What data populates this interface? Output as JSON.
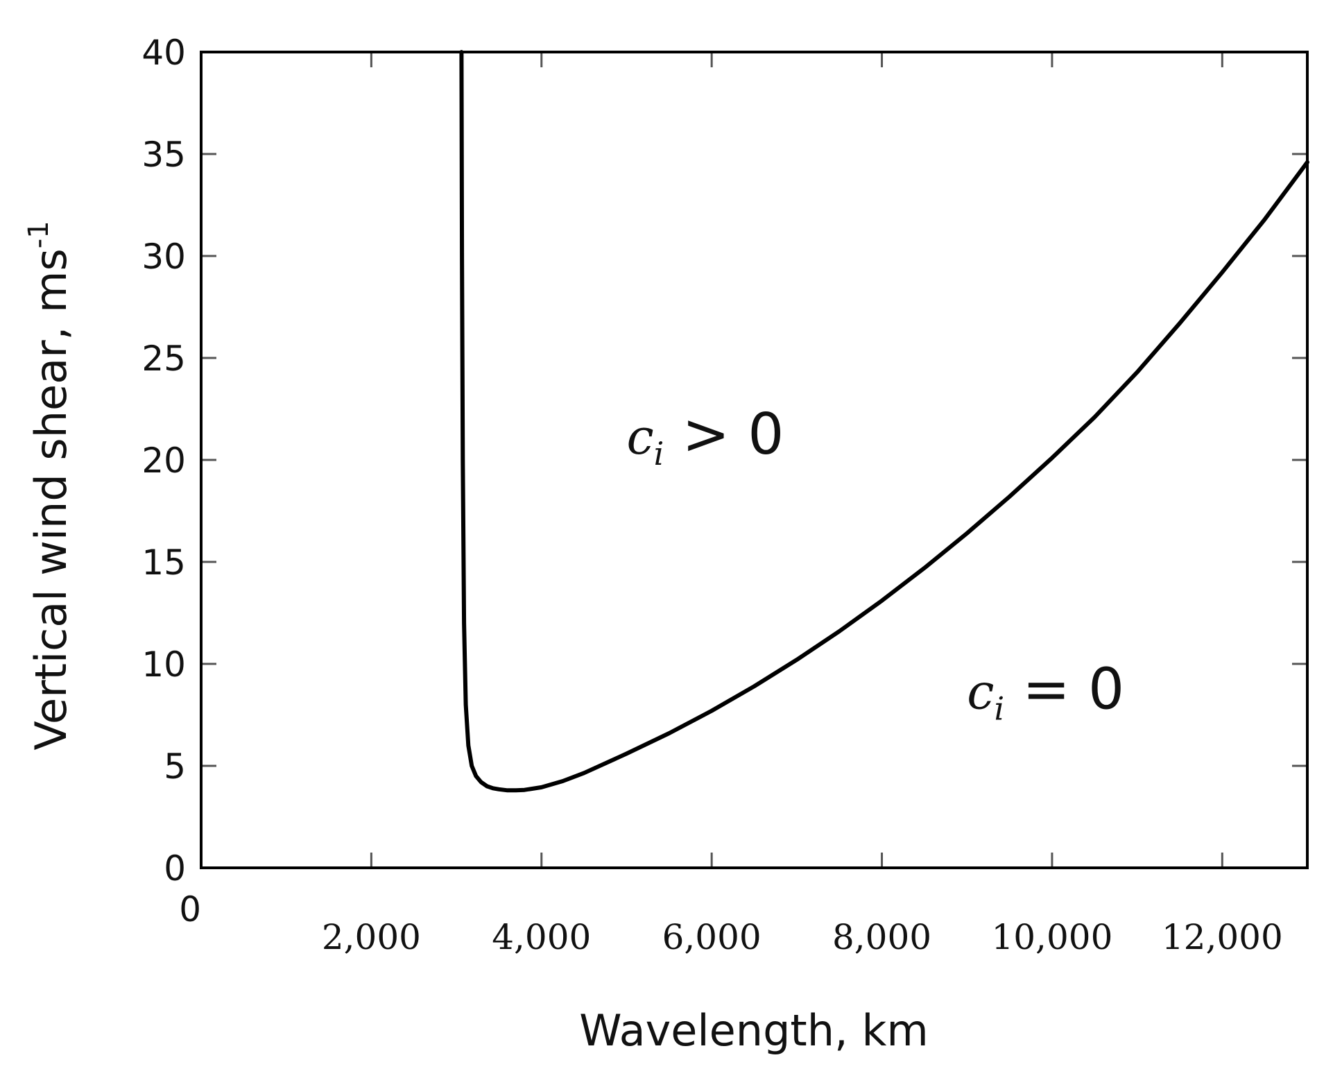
{
  "chart_data": {
    "type": "line",
    "title": "",
    "xlabel": "Wavelength, km",
    "ylabel_main": "Vertical wind shear, ms",
    "ylabel_sup": "-1",
    "xlim": [
      0,
      13000
    ],
    "ylim": [
      0,
      40
    ],
    "grid": false,
    "x_ticks": [
      0,
      2000,
      4000,
      6000,
      8000,
      10000,
      12000
    ],
    "x_tick_labels": [
      "0",
      "2,000",
      "4,000",
      "6,000",
      "8,000",
      "10,000",
      "12,000"
    ],
    "y_ticks": [
      0,
      5,
      10,
      15,
      20,
      25,
      30,
      35,
      40
    ],
    "y_tick_labels": [
      "0",
      "5",
      "10",
      "15",
      "20",
      "25",
      "30",
      "35",
      "40"
    ],
    "series": [
      {
        "name": "neutral stability curve",
        "color": "#000000",
        "x": [
          3060,
          3065,
          3075,
          3090,
          3110,
          3140,
          3180,
          3230,
          3290,
          3360,
          3430,
          3500,
          3600,
          3700,
          3800,
          4000,
          4250,
          4500,
          5000,
          5500,
          6000,
          6500,
          7000,
          7500,
          8000,
          8500,
          9000,
          9500,
          10000,
          10500,
          11000,
          11500,
          12000,
          12500,
          13000
        ],
        "y": [
          40,
          30,
          20,
          12,
          8,
          6,
          5,
          4.5,
          4.2,
          4.0,
          3.9,
          3.85,
          3.8,
          3.8,
          3.82,
          3.95,
          4.25,
          4.65,
          5.6,
          6.6,
          7.7,
          8.9,
          10.2,
          11.6,
          13.1,
          14.7,
          16.4,
          18.2,
          20.1,
          22.1,
          24.3,
          26.7,
          29.2,
          31.8,
          34.6
        ]
      }
    ],
    "annotations": [
      {
        "var": "c",
        "sub": "i",
        "rest": " > 0",
        "x": 5000,
        "y": 20.3
      },
      {
        "var": "c",
        "sub": "i",
        "rest": " = 0",
        "x": 9000,
        "y": 7.8
      }
    ]
  }
}
